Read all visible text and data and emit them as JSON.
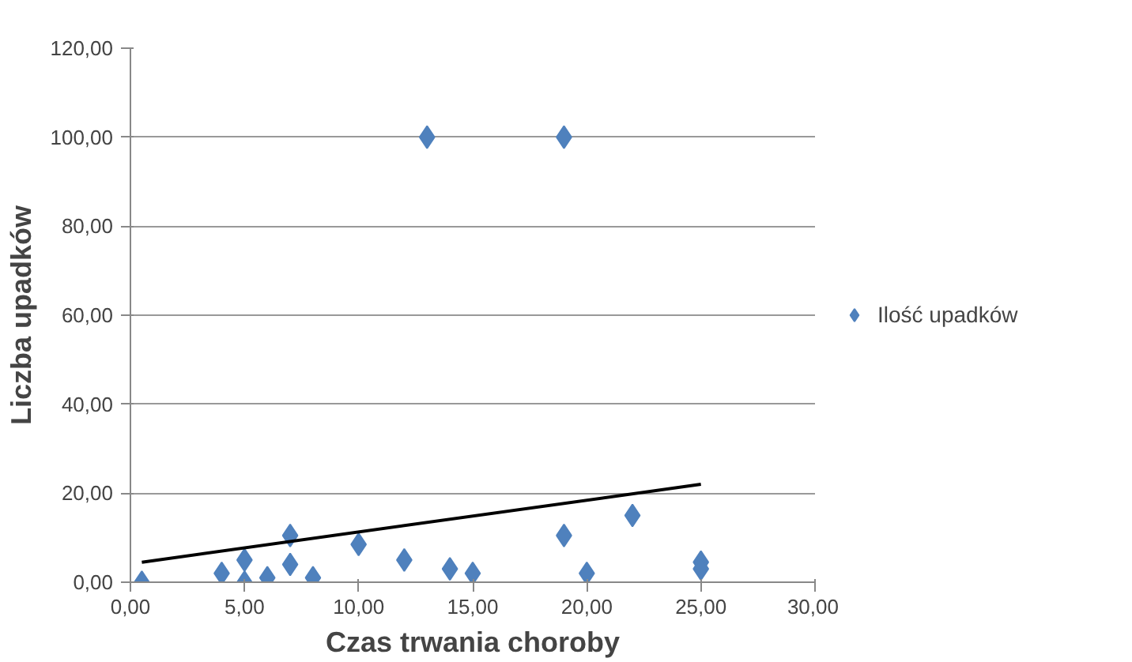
{
  "chart_data": {
    "type": "scatter",
    "xlabel": "Czas trwania choroby",
    "ylabel": "Liczba upadków",
    "xlim": [
      0,
      30
    ],
    "ylim": [
      0,
      120
    ],
    "xticks": [
      {
        "value": 0,
        "label": "0,00"
      },
      {
        "value": 5,
        "label": "5,00"
      },
      {
        "value": 10,
        "label": "10,00"
      },
      {
        "value": 15,
        "label": "15,00"
      },
      {
        "value": 20,
        "label": "20,00"
      },
      {
        "value": 25,
        "label": "25,00"
      },
      {
        "value": 30,
        "label": "30,00"
      }
    ],
    "yticks": [
      {
        "value": 0,
        "label": "0,00"
      },
      {
        "value": 20,
        "label": "20,00"
      },
      {
        "value": 40,
        "label": "40,00"
      },
      {
        "value": 60,
        "label": "60,00"
      },
      {
        "value": 80,
        "label": "80,00"
      },
      {
        "value": 100,
        "label": "100,00"
      },
      {
        "value": 120,
        "label": "120,00"
      }
    ],
    "grid": "y",
    "legend": "right",
    "series": [
      {
        "name": "Ilość upadków",
        "color": "#4f81bd",
        "marker": "diamond",
        "x": [
          0.5,
          4,
          5,
          5,
          6,
          7,
          7,
          8,
          10,
          12,
          13,
          14,
          15,
          19,
          19,
          20,
          22,
          25,
          25
        ],
        "values": [
          0,
          2,
          5,
          0,
          1,
          10.5,
          4,
          1,
          8.5,
          5,
          100,
          3,
          2,
          100,
          10.5,
          2,
          15,
          4.5,
          3
        ]
      },
      {
        "type": "line",
        "color": "#000000",
        "marker": "none",
        "x": [
          0.5,
          25
        ],
        "values": [
          4.5,
          22
        ]
      }
    ]
  }
}
